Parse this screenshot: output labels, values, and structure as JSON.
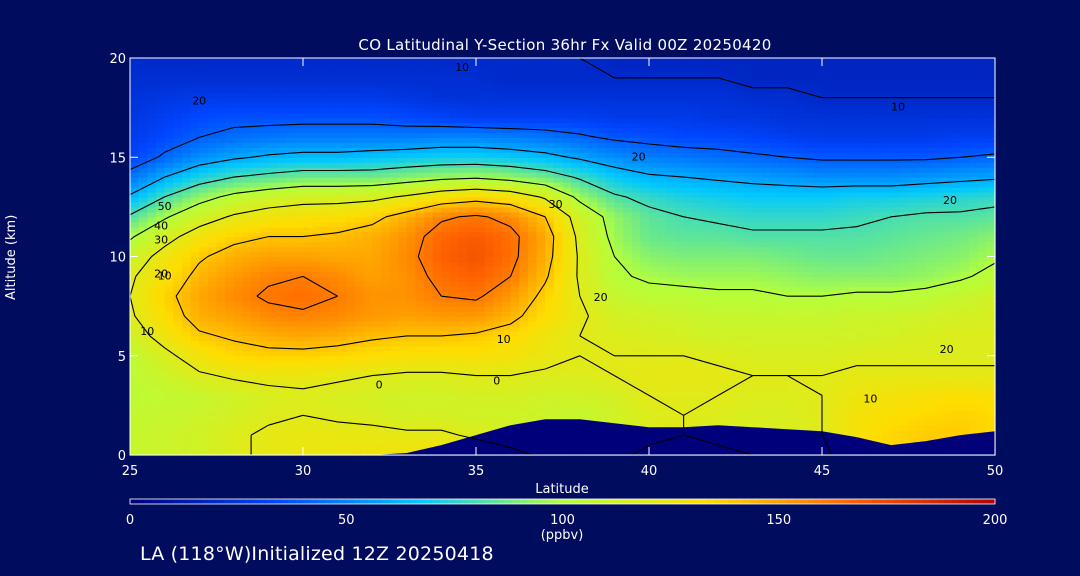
{
  "chart_data": {
    "type": "heatmap",
    "title": "CO Latitudinal Y-Section 36hr  Fx Valid 00Z 20250420",
    "xlabel": "Latitude",
    "ylabel": "Altitude (km)",
    "xlim": [
      25,
      50
    ],
    "ylim": [
      0,
      20
    ],
    "x_ticks": [
      25,
      30,
      35,
      40,
      45,
      50
    ],
    "y_ticks": [
      0,
      5,
      10,
      15,
      20
    ],
    "colorbar": {
      "label": "(ppbv)",
      "range": [
        0,
        200
      ],
      "ticks": [
        0,
        50,
        100,
        150,
        200
      ],
      "colors": [
        "#00007a",
        "#0046ff",
        "#00c8ff",
        "#b4ff3c",
        "#ffdc00",
        "#ff6400",
        "#b40000"
      ]
    },
    "latitudes": [
      25,
      26,
      27,
      28,
      29,
      30,
      31,
      32,
      33,
      34,
      35,
      36,
      37,
      38,
      39,
      40,
      41,
      42,
      43,
      44,
      45,
      46,
      47,
      48,
      49,
      50
    ],
    "altitudes": [
      0,
      1,
      2,
      3,
      4,
      5,
      6,
      7,
      8,
      9,
      10,
      11,
      12,
      13,
      14,
      15,
      16,
      17,
      18,
      19,
      20
    ],
    "co_ppbv": [
      [
        108,
        110,
        112,
        118,
        122,
        124,
        125,
        126,
        128,
        130,
        128,
        123,
        118,
        112,
        118,
        122,
        124,
        122,
        120,
        118,
        116,
        130,
        135,
        138,
        136,
        132
      ],
      [
        108,
        110,
        112,
        118,
        122,
        124,
        124,
        124,
        122,
        122,
        118,
        115,
        112,
        108,
        112,
        118,
        120,
        118,
        116,
        116,
        120,
        130,
        135,
        138,
        138,
        134
      ],
      [
        106,
        108,
        110,
        114,
        118,
        120,
        118,
        116,
        114,
        114,
        112,
        112,
        110,
        108,
        112,
        118,
        120,
        118,
        116,
        116,
        120,
        128,
        132,
        134,
        136,
        134
      ],
      [
        104,
        106,
        108,
        112,
        116,
        118,
        116,
        114,
        112,
        112,
        114,
        114,
        112,
        112,
        114,
        120,
        120,
        120,
        118,
        118,
        120,
        126,
        128,
        130,
        132,
        130
      ],
      [
        104,
        110,
        118,
        122,
        124,
        124,
        122,
        120,
        118,
        118,
        120,
        120,
        118,
        118,
        120,
        122,
        122,
        122,
        120,
        120,
        120,
        122,
        122,
        122,
        122,
        122
      ],
      [
        104,
        116,
        128,
        134,
        136,
        136,
        134,
        132,
        130,
        130,
        130,
        128,
        124,
        120,
        120,
        120,
        120,
        118,
        116,
        116,
        116,
        118,
        118,
        118,
        118,
        118
      ],
      [
        112,
        126,
        138,
        142,
        146,
        148,
        146,
        142,
        140,
        140,
        138,
        134,
        126,
        120,
        118,
        116,
        114,
        112,
        112,
        112,
        112,
        112,
        114,
        116,
        118,
        118
      ],
      [
        118,
        132,
        146,
        150,
        156,
        158,
        156,
        152,
        150,
        152,
        152,
        144,
        132,
        122,
        114,
        112,
        110,
        108,
        108,
        108,
        108,
        110,
        110,
        112,
        114,
        116
      ],
      [
        120,
        136,
        148,
        156,
        162,
        164,
        160,
        154,
        154,
        160,
        162,
        152,
        136,
        120,
        108,
        104,
        104,
        102,
        102,
        100,
        100,
        102,
        102,
        104,
        108,
        112
      ],
      [
        118,
        130,
        144,
        152,
        158,
        160,
        156,
        150,
        154,
        164,
        168,
        160,
        142,
        118,
        102,
        98,
        96,
        96,
        96,
        94,
        92,
        92,
        92,
        94,
        98,
        104
      ],
      [
        110,
        126,
        138,
        146,
        150,
        150,
        148,
        148,
        156,
        168,
        172,
        164,
        146,
        118,
        100,
        92,
        90,
        90,
        90,
        88,
        86,
        86,
        88,
        90,
        92,
        98
      ],
      [
        98,
        114,
        128,
        136,
        140,
        140,
        142,
        146,
        154,
        166,
        170,
        164,
        148,
        116,
        96,
        86,
        84,
        84,
        82,
        82,
        82,
        82,
        84,
        86,
        88,
        92
      ],
      [
        82,
        98,
        112,
        122,
        128,
        130,
        132,
        136,
        146,
        158,
        162,
        156,
        140,
        112,
        94,
        84,
        80,
        78,
        76,
        76,
        76,
        78,
        80,
        82,
        82,
        84
      ],
      [
        62,
        80,
        94,
        104,
        110,
        114,
        114,
        116,
        122,
        130,
        134,
        130,
        118,
        96,
        82,
        76,
        72,
        70,
        68,
        68,
        68,
        70,
        70,
        72,
        74,
        76
      ],
      [
        45,
        60,
        72,
        80,
        84,
        88,
        88,
        88,
        92,
        96,
        98,
        94,
        88,
        78,
        68,
        62,
        60,
        58,
        56,
        54,
        52,
        52,
        52,
        54,
        56,
        58
      ],
      [
        32,
        42,
        52,
        58,
        62,
        64,
        64,
        66,
        68,
        70,
        70,
        68,
        64,
        58,
        52,
        48,
        46,
        44,
        42,
        40,
        38,
        38,
        38,
        38,
        40,
        42
      ],
      [
        28,
        34,
        40,
        44,
        46,
        48,
        48,
        48,
        48,
        50,
        50,
        48,
        46,
        42,
        38,
        36,
        34,
        34,
        32,
        30,
        28,
        28,
        28,
        28,
        30,
        30
      ],
      [
        26,
        30,
        34,
        36,
        36,
        36,
        36,
        36,
        34,
        32,
        30,
        30,
        30,
        30,
        28,
        28,
        28,
        26,
        26,
        24,
        24,
        24,
        24,
        24,
        24,
        24
      ],
      [
        24,
        26,
        28,
        28,
        28,
        28,
        28,
        28,
        26,
        24,
        24,
        24,
        24,
        24,
        24,
        24,
        24,
        24,
        22,
        22,
        20,
        20,
        20,
        20,
        20,
        20
      ],
      [
        22,
        22,
        22,
        22,
        22,
        22,
        22,
        22,
        22,
        22,
        22,
        20,
        20,
        20,
        20,
        20,
        20,
        20,
        18,
        18,
        18,
        18,
        18,
        18,
        18,
        18
      ],
      [
        20,
        20,
        20,
        20,
        20,
        20,
        20,
        20,
        20,
        20,
        20,
        20,
        20,
        20,
        18,
        18,
        18,
        18,
        18,
        18,
        18,
        18,
        18,
        18,
        18,
        18
      ]
    ],
    "terrain_top_km": [
      0,
      0,
      0,
      0,
      0,
      0,
      0,
      0,
      0.1,
      0.5,
      1.0,
      1.5,
      1.8,
      1.8,
      1.6,
      1.4,
      1.4,
      1.5,
      1.4,
      1.3,
      1.2,
      0.9,
      0.5,
      0.7,
      1.0,
      1.2
    ],
    "contour_labels": [
      "10",
      "20",
      "10",
      "10",
      "50",
      "40",
      "30",
      "20",
      "10",
      "20",
      "30",
      "20",
      "20",
      "10",
      "0",
      "0",
      "20",
      "10"
    ],
    "footer": "LA (118°W)Initialized 12Z 20250418"
  }
}
